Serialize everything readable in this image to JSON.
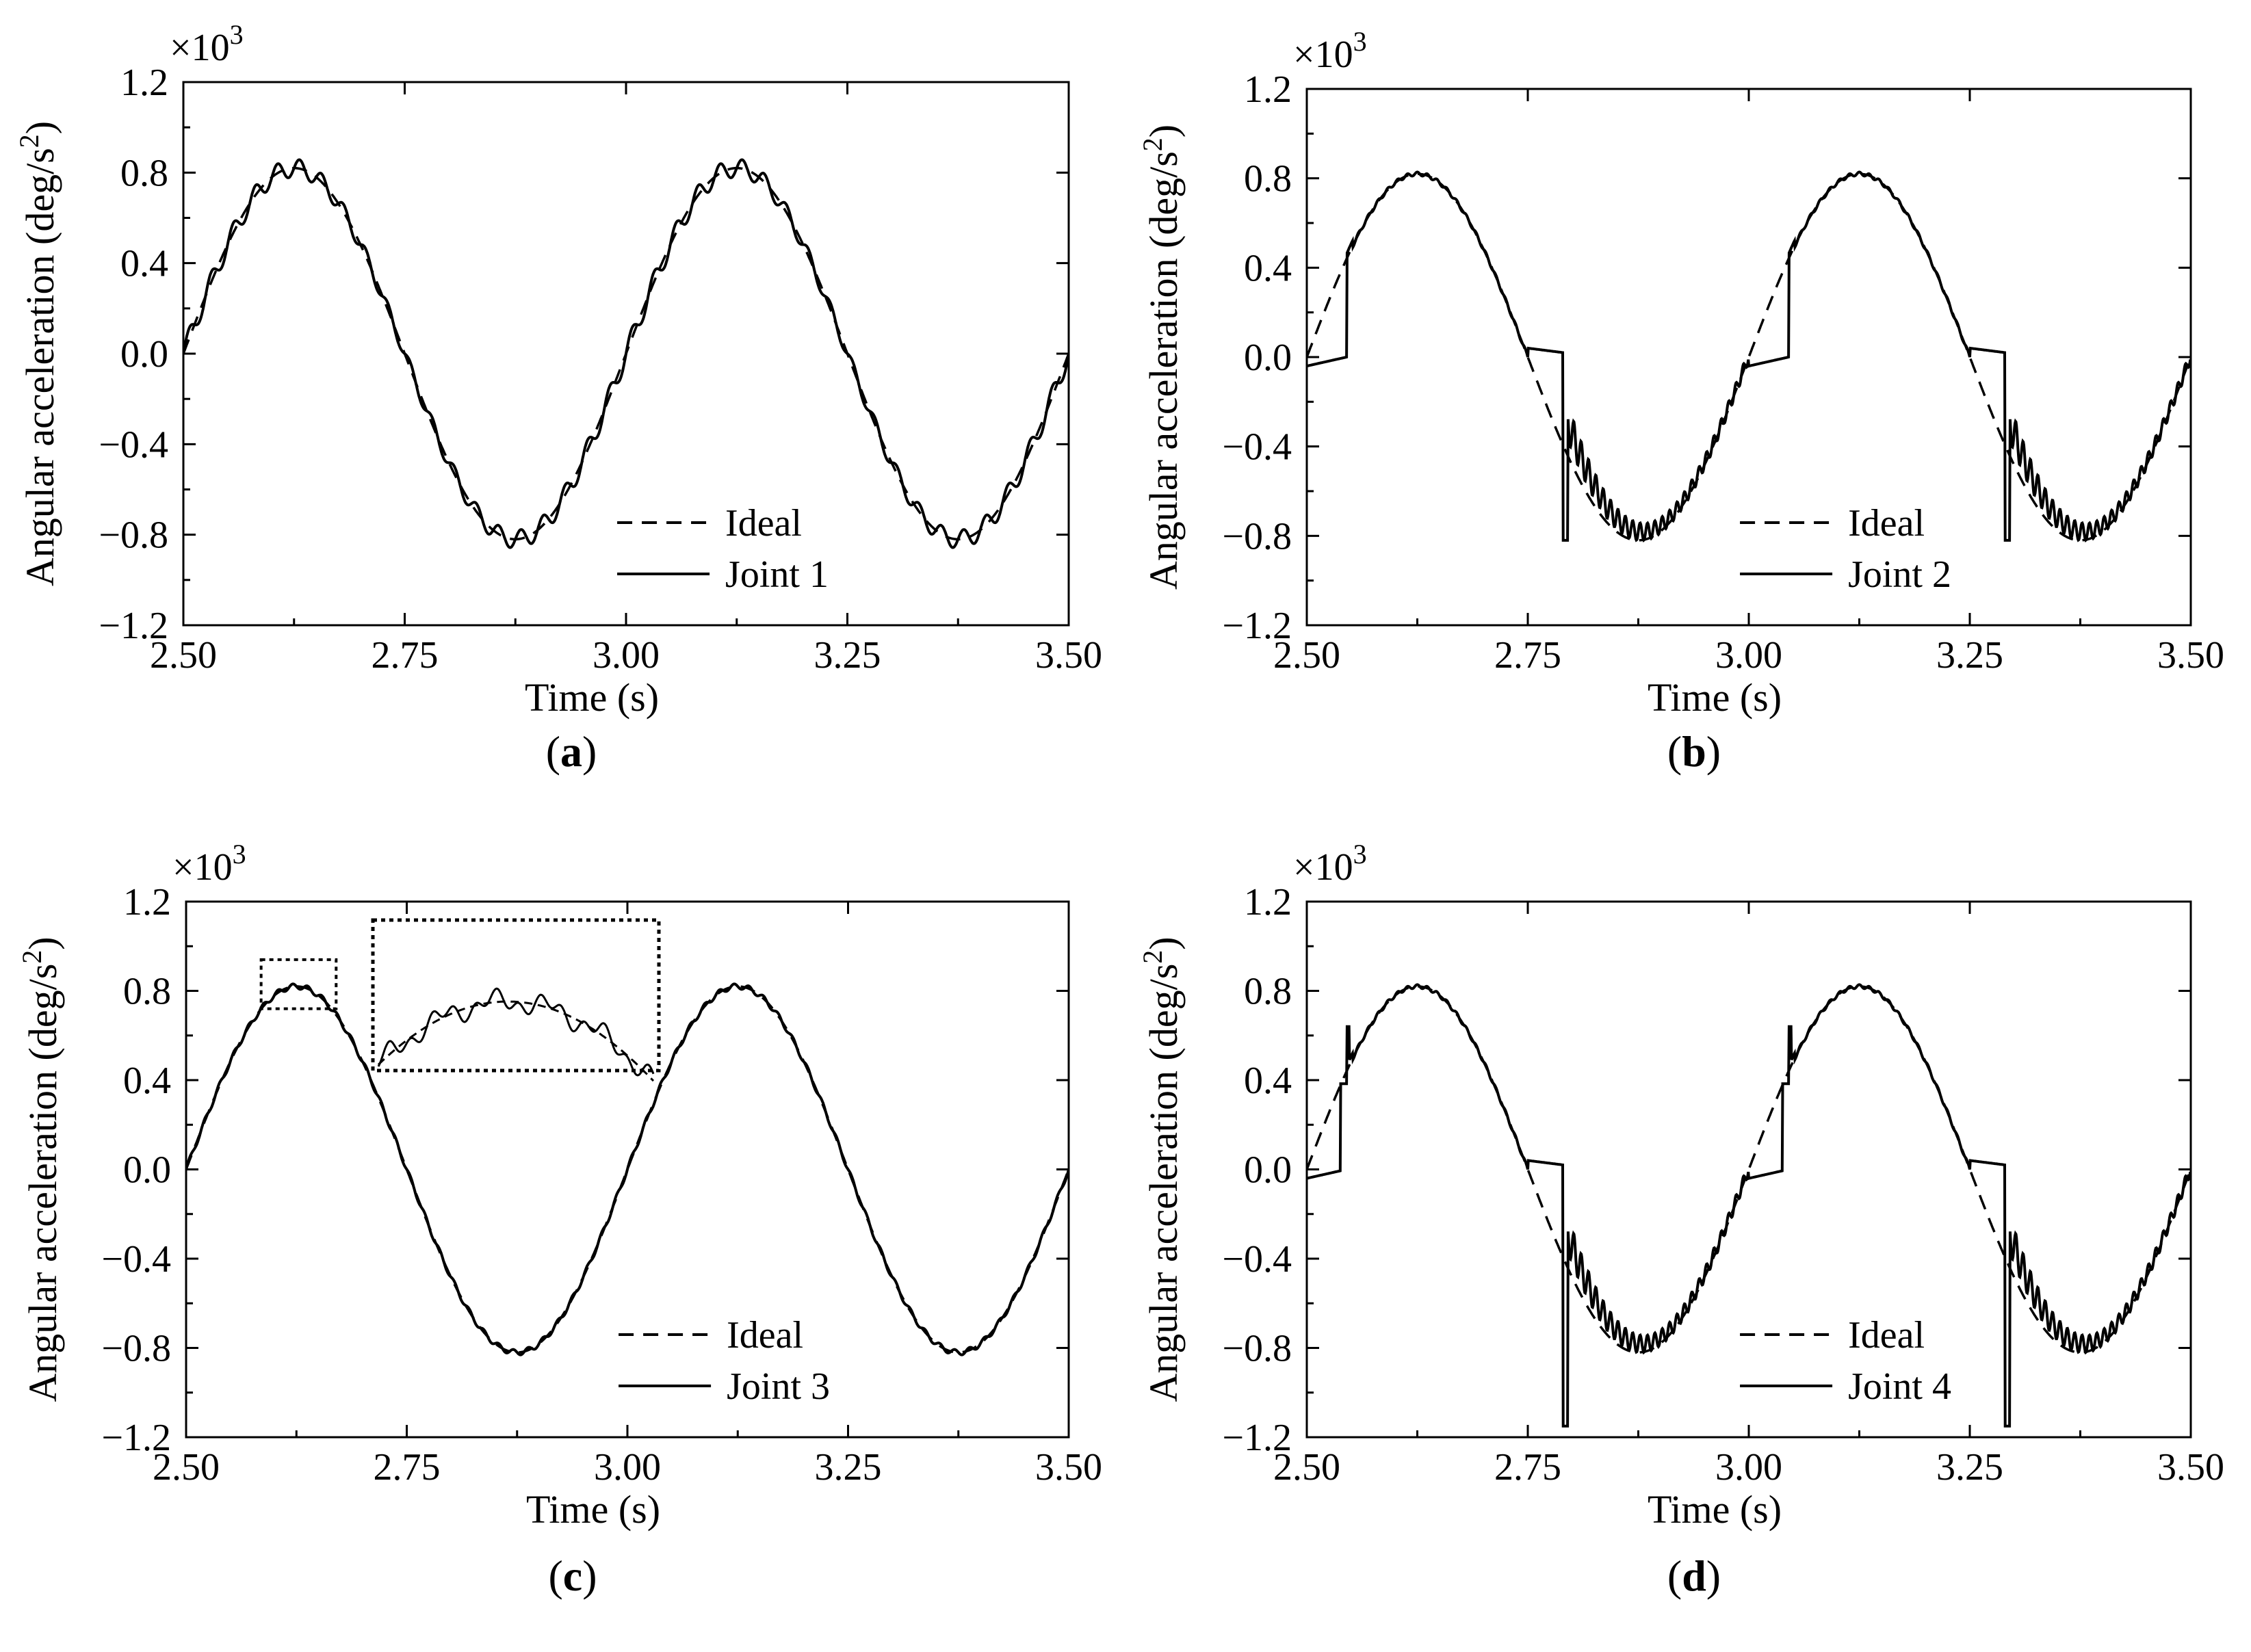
{
  "chart_data": [
    {
      "type": "line",
      "panel_label": "a",
      "xlabel": "Time (s)",
      "ylabel_main": "Angular acceleration (deg/s",
      "ylabel_sup": "2",
      "ylabel_close": ")",
      "multiplier_base": "×10",
      "multiplier_exp": "3",
      "xlim": [
        2.5,
        3.5
      ],
      "ylim": [
        -1.2,
        1.2
      ],
      "xticks": [
        2.5,
        2.75,
        3.0,
        3.25,
        3.5
      ],
      "xtick_labels": [
        "2.50",
        "2.75",
        "3.00",
        "3.25",
        "3.50"
      ],
      "yticks": [
        -1.2,
        -0.8,
        -0.4,
        0.0,
        0.4,
        0.8,
        1.2
      ],
      "ytick_labels": [
        "−1.2",
        "−0.8",
        "−0.4",
        "0.0",
        "0.4",
        "0.8",
        "1.2"
      ],
      "legend": [
        "Ideal",
        "Joint 1"
      ],
      "series": [
        {
          "name": "Ideal",
          "style": "dashed",
          "generator": "ideal_sine",
          "amplitude": 0.82,
          "period": 0.5,
          "phase_start": 2.5
        },
        {
          "name": "Joint 1",
          "style": "solid",
          "generator": "ripple",
          "amplitude": 0.82,
          "ripple_amplitude": 0.045,
          "ripple_frequency": 40
        }
      ]
    },
    {
      "type": "line",
      "panel_label": "b",
      "xlabel": "Time (s)",
      "ylabel_main": "Angular acceleration (deg/s",
      "ylabel_sup": "2",
      "ylabel_close": ")",
      "multiplier_base": "×10",
      "multiplier_exp": "3",
      "xlim": [
        2.5,
        3.5
      ],
      "ylim": [
        -1.2,
        1.2
      ],
      "xticks": [
        2.5,
        2.75,
        3.0,
        3.25,
        3.5
      ],
      "xtick_labels": [
        "2.50",
        "2.75",
        "3.00",
        "3.25",
        "3.50"
      ],
      "yticks": [
        -1.2,
        -0.8,
        -0.4,
        0.0,
        0.4,
        0.8,
        1.2
      ],
      "ytick_labels": [
        "−1.2",
        "−0.8",
        "−0.4",
        "0.0",
        "0.4",
        "0.8",
        "1.2"
      ],
      "legend": [
        "Ideal",
        "Joint 2"
      ],
      "series": [
        {
          "name": "Ideal",
          "style": "dashed",
          "generator": "ideal_sine",
          "amplitude": 0.82,
          "period": 0.5,
          "phase_start": 2.5
        },
        {
          "name": "Joint 2",
          "style": "solid",
          "generator": "deadzone",
          "amplitude": 0.82,
          "zero_band": 0.04,
          "spike_min": -0.82,
          "post_ripple_amplitude": 0.06,
          "spike_up": 0.0
        }
      ]
    },
    {
      "type": "line",
      "panel_label": "c",
      "xlabel": "Time (s)",
      "ylabel_main": "Angular acceleration (deg/s",
      "ylabel_sup": "2",
      "ylabel_close": ")",
      "multiplier_base": "×10",
      "multiplier_exp": "3",
      "xlim": [
        2.5,
        3.5
      ],
      "ylim": [
        -1.2,
        1.2
      ],
      "xticks": [
        2.5,
        2.75,
        3.0,
        3.25,
        3.5
      ],
      "xtick_labels": [
        "2.50",
        "2.75",
        "3.00",
        "3.25",
        "3.50"
      ],
      "yticks": [
        -1.2,
        -0.8,
        -0.4,
        0.0,
        0.4,
        0.8,
        1.2
      ],
      "ytick_labels": [
        "−1.2",
        "−0.8",
        "−0.4",
        "0.0",
        "0.4",
        "0.8",
        "1.2"
      ],
      "legend": [
        "Ideal",
        "Joint 3"
      ],
      "inset": {
        "x_range": [
          2.585,
          2.67
        ],
        "y_range": [
          0.72,
          0.94
        ]
      },
      "series": [
        {
          "name": "Ideal",
          "style": "dashed",
          "generator": "ideal_sine",
          "amplitude": 0.82,
          "period": 0.5,
          "phase_start": 2.5
        },
        {
          "name": "Joint 3",
          "style": "solid",
          "generator": "smooth",
          "amplitude": 0.82,
          "ripple_amplitude": 0.012,
          "ripple_frequency": 60
        }
      ]
    },
    {
      "type": "line",
      "panel_label": "d",
      "xlabel": "Time (s)",
      "ylabel_main": "Angular acceleration (deg/s",
      "ylabel_sup": "2",
      "ylabel_close": ")",
      "multiplier_base": "×10",
      "multiplier_exp": "3",
      "xlim": [
        2.5,
        3.5
      ],
      "ylim": [
        -1.2,
        1.2
      ],
      "xticks": [
        2.5,
        2.75,
        3.0,
        3.25,
        3.5
      ],
      "xtick_labels": [
        "2.50",
        "2.75",
        "3.00",
        "3.25",
        "3.50"
      ],
      "yticks": [
        -1.2,
        -0.8,
        -0.4,
        0.0,
        0.4,
        0.8,
        1.2
      ],
      "ytick_labels": [
        "−1.2",
        "−0.8",
        "−0.4",
        "0.0",
        "0.4",
        "0.8",
        "1.2"
      ],
      "legend": [
        "Ideal",
        "Joint 4"
      ],
      "series": [
        {
          "name": "Ideal",
          "style": "dashed",
          "generator": "ideal_sine",
          "amplitude": 0.82,
          "period": 0.5,
          "phase_start": 2.5
        },
        {
          "name": "Joint 4",
          "style": "solid",
          "generator": "deadzone",
          "amplitude": 0.82,
          "zero_band": 0.04,
          "spike_min": -1.15,
          "post_ripple_amplitude": 0.06,
          "spike_up": 0.64
        }
      ]
    }
  ]
}
